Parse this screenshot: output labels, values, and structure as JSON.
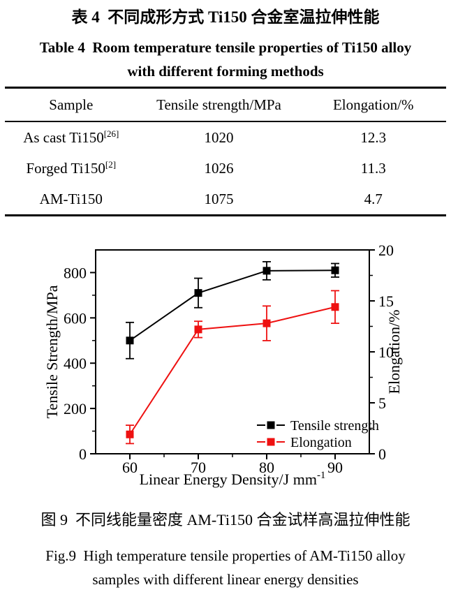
{
  "page": {
    "background": "#ffffff",
    "text_color": "#000000",
    "accent_red": "#ee1111"
  },
  "table": {
    "title_zh": "表 4  不同成形方式 Ti150 合金室温拉伸性能",
    "title_en_line1": "Table 4  Room temperature tensile properties of Ti150 alloy",
    "title_en_line2": "with different forming methods",
    "columns": [
      "Sample",
      "Tensile strength/MPa",
      "Elongation/%"
    ],
    "rows": [
      {
        "sample": "As cast Ti150",
        "sup": "[26]",
        "tensile": "1020",
        "elong": "12.3"
      },
      {
        "sample": "Forged Ti150",
        "sup": "[2]",
        "tensile": "1026",
        "elong": "11.3"
      },
      {
        "sample": "AM-Ti150",
        "sup": "",
        "tensile": "1075",
        "elong": "4.7"
      }
    ]
  },
  "figure": {
    "caption_zh": "图 9  不同线能量密度 AM-Ti150 合金试样高温拉伸性能",
    "caption_en_line1": "Fig.9  High temperature tensile properties of AM-Ti150 alloy",
    "caption_en_line2": "samples with different linear energy densities"
  },
  "chart_data": {
    "type": "line",
    "x": [
      60,
      70,
      80,
      90
    ],
    "xlabel": "Linear Energy Density/J mm",
    "xlabel_superscript": "-1",
    "ylabel_left": "Tensile Strength/MPa",
    "ylabel_right": "Elongation/%",
    "xlim": [
      55,
      95
    ],
    "ylim_left": [
      0,
      900
    ],
    "ylim_right": [
      0,
      20
    ],
    "x_major_ticks": [
      60,
      70,
      80,
      90
    ],
    "x_minor_ticks": [
      65,
      75,
      85
    ],
    "y_left_major_ticks": [
      0,
      200,
      400,
      600,
      800
    ],
    "y_left_minor_ticks": [
      100,
      300,
      500,
      700
    ],
    "y_right_major_ticks": [
      0,
      5,
      10,
      15,
      20
    ],
    "y_right_minor_ticks": [
      2.5,
      7.5,
      12.5,
      17.5
    ],
    "grid": false,
    "legend_position": "inside-bottom-right",
    "series": [
      {
        "name": "Tensile strength",
        "axis": "left",
        "color": "#000000",
        "marker": "square",
        "values": [
          500,
          710,
          808,
          810
        ],
        "errors": [
          80,
          65,
          40,
          30
        ]
      },
      {
        "name": "Elongation",
        "axis": "right",
        "color": "#ee1111",
        "marker": "square",
        "values": [
          1.9,
          12.2,
          12.8,
          14.4
        ],
        "errors": [
          0.9,
          0.8,
          1.7,
          1.6
        ]
      }
    ]
  }
}
